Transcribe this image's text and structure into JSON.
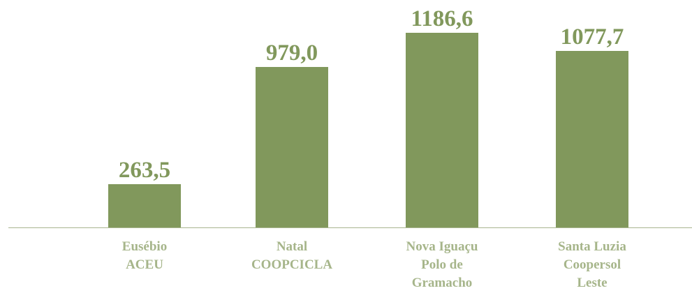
{
  "chart_data": {
    "type": "bar",
    "categories": [
      "Eusébio\nACEU",
      "Natal\nCOOPCICLA",
      "Nova Iguaçu\nPolo de\nGramacho",
      "Santa Luzia\nCoopersol\nLeste"
    ],
    "values": [
      263.5,
      979.0,
      1186.6,
      1077.7
    ],
    "value_labels": [
      "263,5",
      "979,0",
      "1186,6",
      "1077,7"
    ],
    "color": "#81985c"
  }
}
